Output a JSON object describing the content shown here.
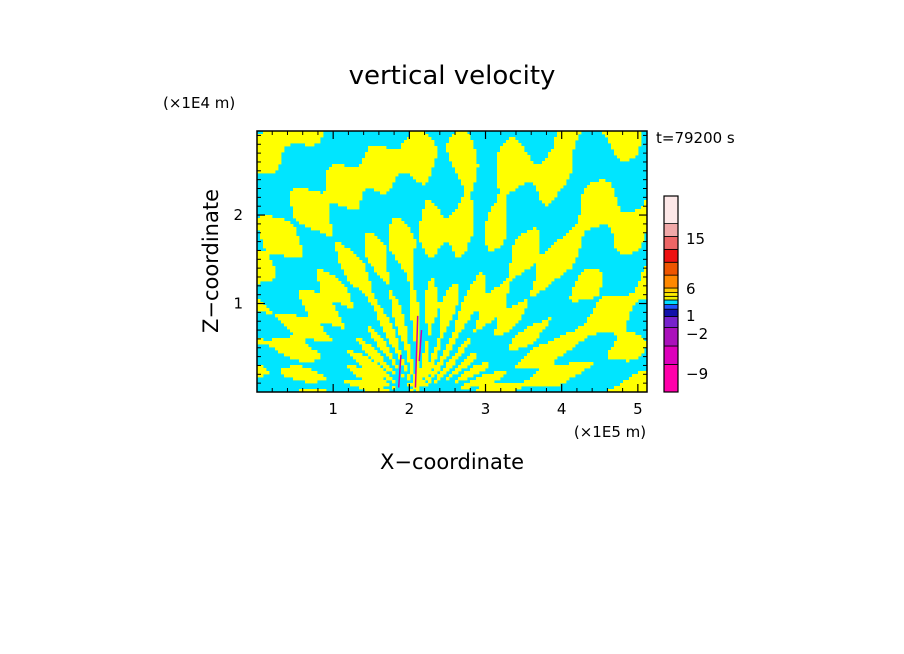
{
  "chart_data": {
    "type": "heatmap",
    "title": "vertical velocity",
    "xlabel": "X−coordinate",
    "ylabel": "Z−coordinate",
    "x_unit": "(×1E5 m)",
    "y_unit": "(×1E4 m)",
    "time_label": "t=79200 s",
    "xlim": [
      0,
      5.12
    ],
    "ylim": [
      0,
      2.95
    ],
    "x_ticks": [
      "1",
      "2",
      "3",
      "4",
      "5"
    ],
    "y_ticks": [
      "1",
      "2"
    ],
    "colorbar": {
      "levels": [
        {
          "color": "#ff00aa"
        },
        {
          "color": "#dd00bb"
        },
        {
          "color": "#aa11bb"
        },
        {
          "color": "#7722cc"
        },
        {
          "color": "#1111aa"
        },
        {
          "color": "#2255ff"
        },
        {
          "color": "#00ddff"
        },
        {
          "color": "#eeee00"
        },
        {
          "color": "#ffee00"
        },
        {
          "color": "#ffcc00"
        },
        {
          "color": "#ff8800"
        },
        {
          "color": "#ee5500"
        },
        {
          "color": "#ee1111"
        },
        {
          "color": "#ee6666"
        },
        {
          "color": "#f0a8a8"
        },
        {
          "color": "#fde8e8"
        }
      ],
      "tick_labels": [
        "15",
        "6",
        "1",
        "−2",
        "−9"
      ]
    },
    "field_colors": {
      "positive": "#ffff00",
      "negative": "#00e5ff",
      "strong": "#cc00aa"
    }
  }
}
